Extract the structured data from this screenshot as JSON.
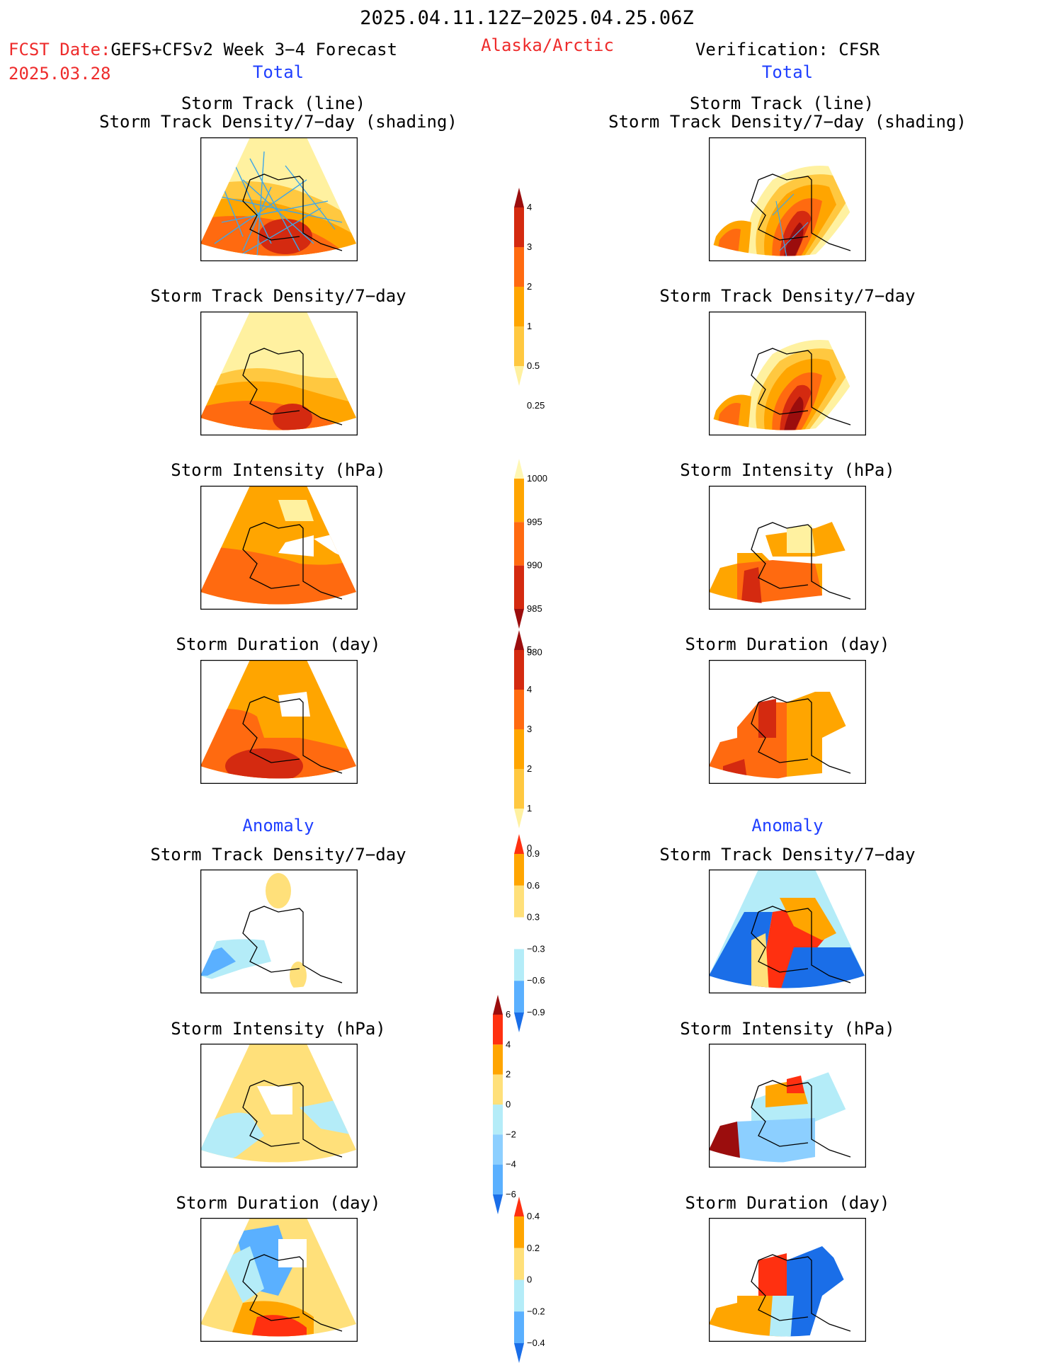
{
  "header": {
    "period": "2025.04.11.12Z−2025.04.25.06Z",
    "fcst_label": "FCST Date:",
    "fcst_model": "GEFS+CFSv2 Week 3−4 Forecast",
    "fcst_date": "2025.03.28",
    "region": "Alaska/Arctic",
    "verification": "Verification: CFSR"
  },
  "sections": {
    "total": "Total",
    "anomaly": "Anomaly"
  },
  "panel_titles": {
    "track_line": "Storm Track (line)",
    "track_density_shading": "Storm Track Density/7−day (shading)",
    "track_density": "Storm Track Density/7−day",
    "intensity": "Storm Intensity (hPa)",
    "duration": "Storm Duration (day)"
  },
  "colorbars": [
    {
      "id": "density",
      "labels": [
        "4",
        "3",
        "2",
        "1",
        "0.5",
        "0.25"
      ],
      "colors": [
        "#9b0d0d",
        "#d42a10",
        "#ff6a10",
        "#ffa500",
        "#ffc840",
        "#fff1a0"
      ]
    },
    {
      "id": "intensity",
      "labels": [
        "1000",
        "995",
        "990",
        "985",
        "980"
      ],
      "colors": [
        "#fff7b4",
        "#ffa500",
        "#ff6a10",
        "#d42a10",
        "#9b0d0d"
      ]
    },
    {
      "id": "duration",
      "labels": [
        "5",
        "4",
        "3",
        "2",
        "1",
        "0"
      ],
      "colors": [
        "#9b0d0d",
        "#d42a10",
        "#ff6a10",
        "#ffa500",
        "#ffc840",
        "#fff1a0"
      ]
    },
    {
      "id": "anom-density",
      "labels": [
        "0.9",
        "0.6",
        "0.3",
        "−0.3",
        "−0.6",
        "−0.9"
      ],
      "colors": [
        "#ff3010",
        "#ffa500",
        "#ffe07a",
        "#ffffff",
        "#b4ecf8",
        "#5ab0ff",
        "#1a6ee8"
      ]
    },
    {
      "id": "anom-intensity",
      "labels": [
        "6",
        "4",
        "2",
        "0",
        "−2",
        "−4",
        "−6"
      ],
      "colors": [
        "#9b0d0d",
        "#ff3010",
        "#ffa500",
        "#ffe07a",
        "#b4ecf8",
        "#8ccfff",
        "#5ab0ff",
        "#1a6ee8"
      ]
    },
    {
      "id": "anom-duration",
      "labels": [
        "0.4",
        "0.2",
        "0",
        "−0.2",
        "−0.4"
      ],
      "colors": [
        "#ff3010",
        "#ffa500",
        "#ffe07a",
        "#b4ecf8",
        "#5ab0ff",
        "#1a6ee8"
      ]
    }
  ],
  "palette": {
    "pale": "#fff1a0",
    "light": "#ffc840",
    "orange": "#ffa500",
    "dark_orange": "#ff6a10",
    "red": "#d42a10",
    "dark_red": "#9b0d0d",
    "light_blue": "#b4ecf8",
    "mid_blue": "#5ab0ff",
    "dark_blue": "#1a6ee8",
    "track_line": "#3ea6e8",
    "coast": "#000000"
  }
}
